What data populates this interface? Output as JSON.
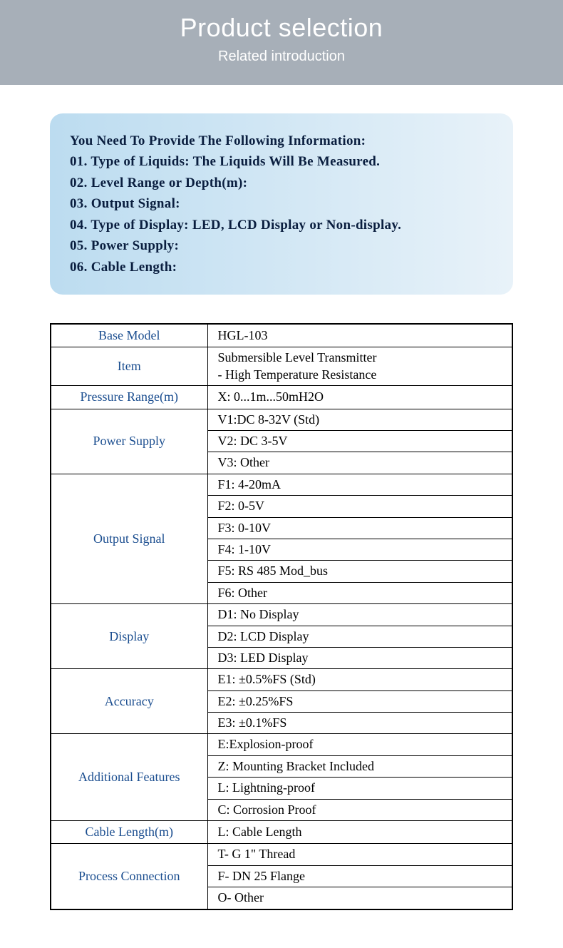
{
  "header": {
    "title": "Product selection",
    "subtitle": "Related introduction",
    "bg_color": "#a7afb8",
    "text_color": "#ffffff",
    "title_fontsize": 36,
    "subtitle_fontsize": 20
  },
  "info_box": {
    "bg_gradient_start": "#bcdcf0",
    "bg_gradient_end": "#e8f2f9",
    "text_color": "#0a1e3f",
    "fontsize": 19,
    "lines": {
      "l0": "You Need To Provide The Following Information:",
      "l1": "01. Type of Liquids: The Liquids Will Be Measured.",
      "l2": "02. Level Range or Depth(m):",
      "l3": "03. Output Signal:",
      "l4": "04. Type of Display: LED, LCD Display or Non-display.",
      "l5": "05. Power Supply:",
      "l6": "06. Cable Length:"
    }
  },
  "table": {
    "type": "table",
    "label_color": "#1a4d8f",
    "value_color": "#000000",
    "border_color": "#000000",
    "label_col_width": 220,
    "fontsize": 18,
    "rows": {
      "base_model": {
        "label": "Base Model",
        "value": "HGL-103"
      },
      "item": {
        "label": "Item",
        "value": "Submersible Level Transmitter\n- High Temperature Resistance"
      },
      "pressure_range": {
        "label": "Pressure Range(m)",
        "value": "X: 0...1m...50mH2O"
      },
      "power_supply": {
        "label": "Power Supply",
        "v1": "V1:DC 8-32V (Std)",
        "v2": "V2: DC 3-5V",
        "v3": "V3: Other"
      },
      "output_signal": {
        "label": "Output Signal",
        "f1": "F1: 4-20mA",
        "f2": "F2: 0-5V",
        "f3": "F3: 0-10V",
        "f4": "F4: 1-10V",
        "f5": "F5: RS 485 Mod_bus",
        "f6": "F6: Other"
      },
      "display": {
        "label": "Display",
        "d1": "D1: No Display",
        "d2": "D2: LCD Display",
        "d3": "D3: LED Display"
      },
      "accuracy": {
        "label": "Accuracy",
        "e1": "E1: ±0.5%FS (Std)",
        "e2": "E2: ±0.25%FS",
        "e3": "E3: ±0.1%FS"
      },
      "additional": {
        "label": "Additional Features",
        "a1": "E:Explosion-proof",
        "a2": "Z: Mounting Bracket Included",
        "a3": "L: Lightning-proof",
        "a4": "C: Corrosion Proof"
      },
      "cable_length": {
        "label": "Cable Length(m)",
        "value": "L: Cable Length"
      },
      "process_conn": {
        "label": "Process Connection",
        "p1": "T- G 1\" Thread",
        "p2": "F- DN 25 Flange",
        "p3": "O- Other"
      }
    }
  }
}
